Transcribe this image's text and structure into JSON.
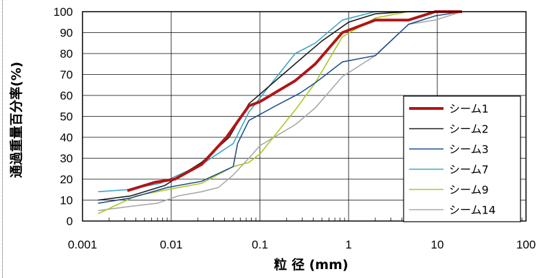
{
  "chart_data": {
    "type": "line",
    "xscale": "log",
    "xlim": [
      0.001,
      100
    ],
    "ylim": [
      0,
      100
    ],
    "grid": true,
    "legend_position": "bottom-right",
    "xlabel": "粒 径 (mm)",
    "ylabel": "通過重量百分率(%)",
    "x_tick_labels": [
      "0.001",
      "0.01",
      "0.1",
      "1",
      "10",
      "100"
    ],
    "y_tick_labels": [
      "0",
      "10",
      "20",
      "30",
      "40",
      "50",
      "60",
      "70",
      "80",
      "90",
      "100"
    ],
    "series": [
      {
        "name": "シーム1",
        "color": "#b01515",
        "width": 4,
        "x": [
          0.0032,
          0.0065,
          0.011,
          0.022,
          0.042,
          0.075,
          0.1,
          0.25,
          0.42,
          0.85,
          2,
          4.75,
          9.5,
          19
        ],
        "y": [
          14.5,
          18.5,
          20,
          27,
          40,
          55,
          57,
          67,
          75,
          90,
          96,
          96,
          100,
          100
        ]
      },
      {
        "name": "シーム2",
        "color": "#1a1a1a",
        "width": 1.6,
        "x": [
          0.0015,
          0.0035,
          0.0085,
          0.022,
          0.045,
          0.075,
          0.15,
          0.3,
          0.5,
          1,
          2,
          4.75,
          19
        ],
        "y": [
          10,
          12,
          17,
          28,
          40,
          56,
          67,
          78,
          86,
          95,
          99,
          100,
          100
        ]
      },
      {
        "name": "シーム3",
        "color": "#1d4f8f",
        "width": 1.6,
        "x": [
          0.0015,
          0.0035,
          0.009,
          0.022,
          0.05,
          0.056,
          0.075,
          0.15,
          0.28,
          0.42,
          0.85,
          2,
          4.75,
          9.5,
          19
        ],
        "y": [
          8.5,
          11,
          16,
          19,
          26,
          37,
          48,
          55,
          61,
          66,
          76,
          79,
          94,
          98,
          100
        ]
      },
      {
        "name": "シーム7",
        "color": "#3aa6c4",
        "width": 1.6,
        "x": [
          0.0015,
          0.0032,
          0.0075,
          0.022,
          0.05,
          0.075,
          0.12,
          0.25,
          0.42,
          0.85,
          2,
          4.75,
          19
        ],
        "y": [
          14,
          15,
          18,
          27,
          37,
          52,
          63,
          80,
          85,
          96,
          100,
          100,
          100
        ]
      },
      {
        "name": "シーム9",
        "color": "#a6c81e",
        "width": 1.6,
        "x": [
          0.0015,
          0.004,
          0.009,
          0.022,
          0.05,
          0.075,
          0.1,
          0.25,
          0.42,
          0.85,
          2,
          4.75,
          19
        ],
        "y": [
          3.5,
          12,
          15,
          18,
          26,
          28,
          32,
          53,
          66,
          88,
          97,
          100,
          100
        ]
      },
      {
        "name": "シーム14",
        "color": "#a8a8a8",
        "width": 1.6,
        "x": [
          0.0015,
          0.0035,
          0.007,
          0.012,
          0.022,
          0.034,
          0.05,
          0.075,
          0.1,
          0.25,
          0.42,
          0.85,
          2,
          4.75,
          9.5,
          19
        ],
        "y": [
          5,
          7,
          8.5,
          12,
          14,
          16,
          22,
          30,
          36,
          46,
          54,
          69,
          79,
          94,
          96,
          100
        ]
      }
    ]
  }
}
